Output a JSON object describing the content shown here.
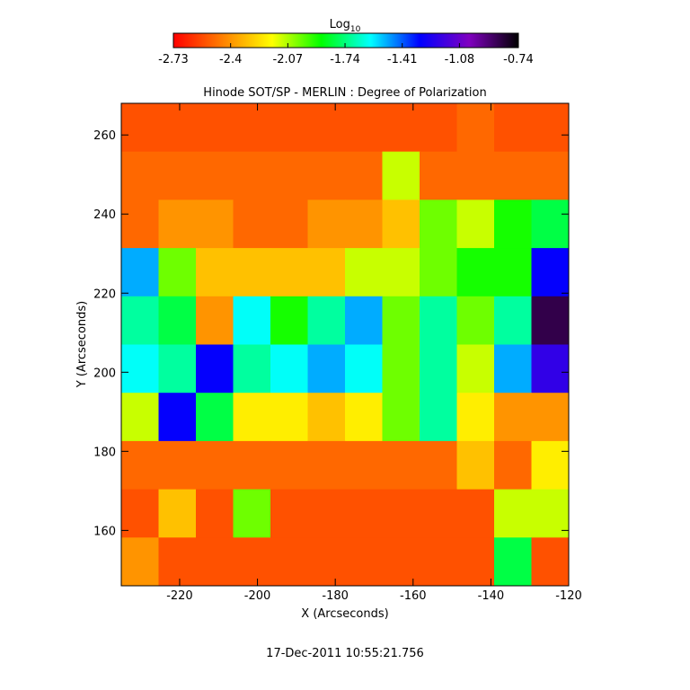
{
  "chart_data": {
    "type": "heatmap",
    "title": "Hinode SOT/SP - MERLIN : Degree of Polarization",
    "x_label": "X (Arcseconds)",
    "y_label": "Y (Arcseconds)",
    "footer": "17-Dec-2011 10:55:21.756",
    "colorbar_title": {
      "base": "Log",
      "sub": "10"
    },
    "colorbar_lim": [
      -2.73,
      -0.74
    ],
    "colorbar_ticks": [
      -2.73,
      -2.4,
      -2.07,
      -1.74,
      -1.41,
      -1.08,
      -0.74
    ],
    "colorscale": [
      "#ff0000",
      "#ff8000",
      "#ffff00",
      "#00ff00",
      "#00ffff",
      "#0000ff",
      "#8000c0",
      "#000000"
    ],
    "xlim": [
      -235,
      -120
    ],
    "ylim": [
      146,
      268
    ],
    "xticks": [
      -220,
      -200,
      -180,
      -160,
      -140,
      -120
    ],
    "yticks": [
      160,
      180,
      200,
      220,
      240,
      260
    ],
    "z": [
      [
        -2.55,
        -2.55,
        -2.55,
        -2.55,
        -2.55,
        -2.55,
        -2.55,
        -2.55,
        -2.55,
        -2.5,
        -2.55,
        -2.55
      ],
      [
        -2.5,
        -2.5,
        -2.5,
        -2.5,
        -2.5,
        -2.5,
        -2.5,
        -2.1,
        -2.5,
        -2.5,
        -2.5,
        -2.5
      ],
      [
        -2.5,
        -2.4,
        -2.4,
        -2.5,
        -2.5,
        -2.4,
        -2.4,
        -2.3,
        -2.0,
        -2.1,
        -1.9,
        -1.8
      ],
      [
        -1.5,
        -2.0,
        -2.3,
        -2.3,
        -2.3,
        -2.3,
        -2.1,
        -2.1,
        -2.0,
        -1.9,
        -1.9,
        -1.3
      ],
      [
        -1.7,
        -1.8,
        -2.4,
        -1.6,
        -1.9,
        -1.7,
        -1.5,
        -2.0,
        -1.7,
        -2.0,
        -1.7,
        -0.85
      ],
      [
        -1.6,
        -1.7,
        -1.3,
        -1.7,
        -1.6,
        -1.5,
        -1.6,
        -2.0,
        -1.7,
        -2.1,
        -1.5,
        -1.2
      ],
      [
        -2.1,
        -1.3,
        -1.8,
        -2.2,
        -2.2,
        -2.3,
        -2.2,
        -2.0,
        -1.7,
        -2.2,
        -2.4,
        -2.4
      ],
      [
        -2.5,
        -2.5,
        -2.5,
        -2.5,
        -2.5,
        -2.5,
        -2.5,
        -2.5,
        -2.5,
        -2.3,
        -2.5,
        -2.2
      ],
      [
        -2.55,
        -2.3,
        -2.55,
        -2.0,
        -2.55,
        -2.55,
        -2.55,
        -2.55,
        -2.55,
        -2.55,
        -2.1,
        -2.1
      ],
      [
        -2.4,
        -2.55,
        -2.55,
        -2.55,
        -2.55,
        -2.55,
        -2.55,
        -2.55,
        -2.55,
        -2.55,
        -1.8,
        -2.55
      ]
    ]
  }
}
